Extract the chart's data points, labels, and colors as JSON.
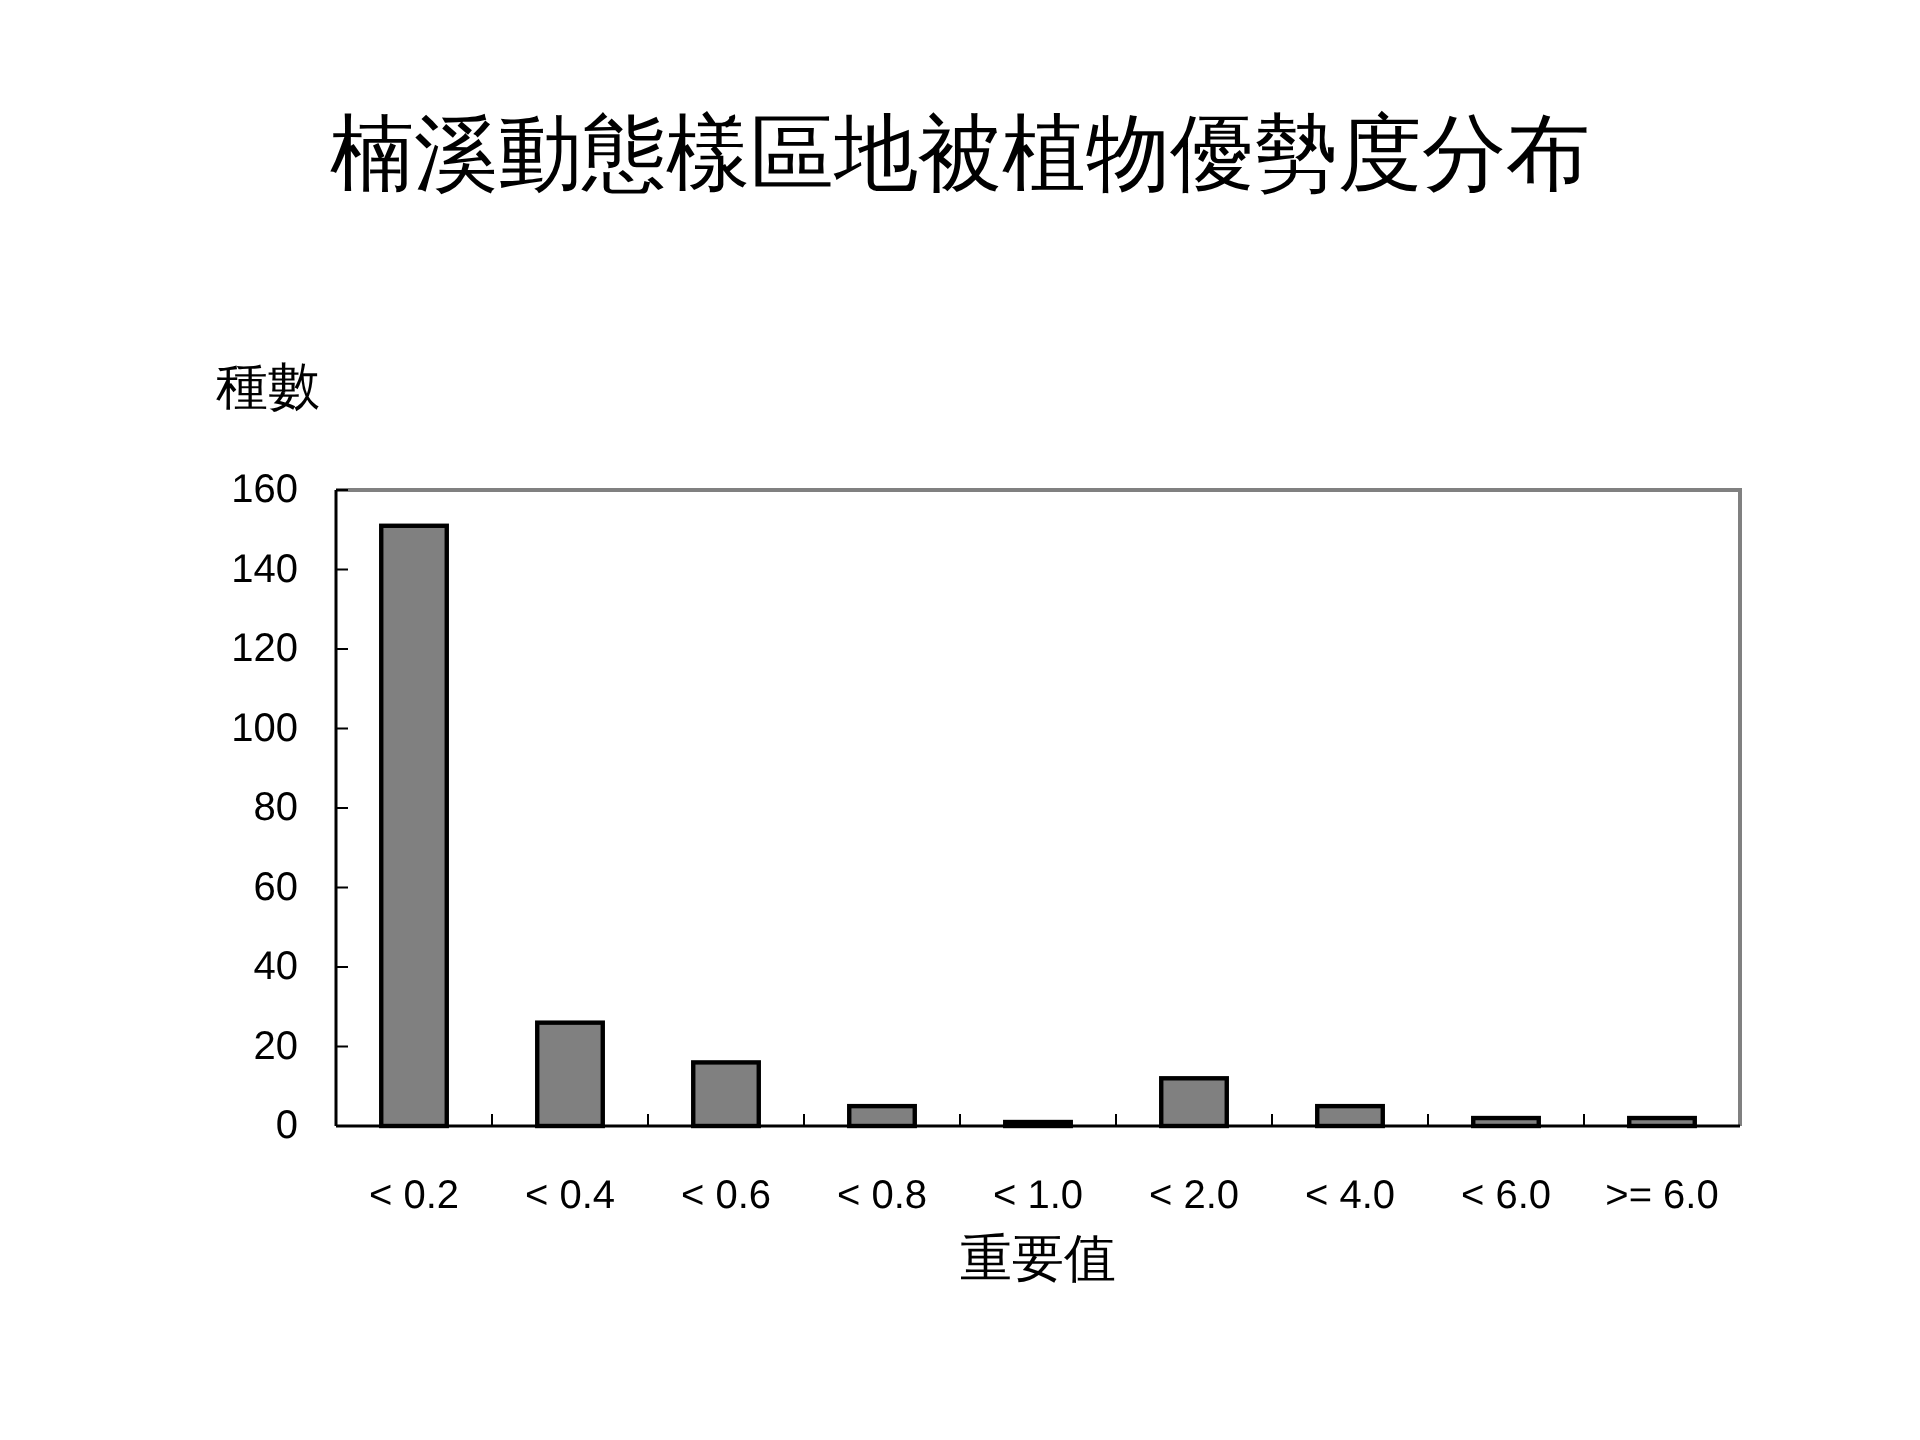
{
  "chart_data": {
    "type": "bar",
    "title": "楠溪動態樣區地被植物優勢度分布",
    "xlabel": "重要值",
    "ylabel": "種數",
    "categories": [
      "< 0.2",
      "< 0.4",
      "< 0.6",
      "< 0.8",
      "< 1.0",
      "< 2.0",
      "< 4.0",
      "< 6.0",
      ">= 6.0"
    ],
    "values": [
      151,
      26,
      16,
      5,
      1,
      12,
      5,
      2,
      2
    ],
    "color": "#808080",
    "ylim": [
      0,
      160
    ],
    "yticks": [
      0,
      20,
      40,
      60,
      80,
      100,
      120,
      140,
      160
    ]
  }
}
